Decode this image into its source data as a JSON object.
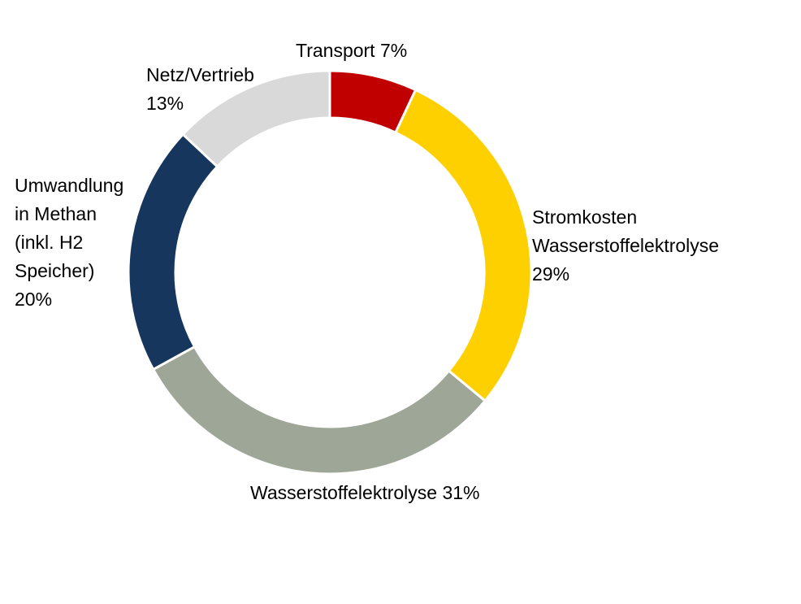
{
  "chart_data": {
    "type": "pie",
    "variant": "donut",
    "title": "",
    "start": "12 o'clock",
    "direction": "clockwise",
    "slices": [
      {
        "label": "Transport",
        "value": 7,
        "unit": "%",
        "color": "#c00000",
        "label_lines": [
          "Transport 7%"
        ]
      },
      {
        "label": "Stromkosten Wasserstoffelektrolyse",
        "value": 29,
        "unit": "%",
        "color": "#ffd000",
        "label_lines": [
          "Stromkosten",
          "Wasserstoffelektrolyse",
          "29%"
        ]
      },
      {
        "label": "Wasserstoffelektrolyse",
        "value": 31,
        "unit": "%",
        "color": "#9ea698",
        "label_lines": [
          "Wasserstoffelektrolyse 31%"
        ]
      },
      {
        "label": "Umwandlung in Methan (inkl. H2 Speicher)",
        "value": 20,
        "unit": "%",
        "color": "#17365d",
        "label_lines": [
          "Umwandlung",
          "in Methan",
          "(inkl. H2",
          "Speicher)",
          "20%"
        ]
      },
      {
        "label": "Netz/Vertrieb",
        "value": 13,
        "unit": "%",
        "color": "#d9d9d9",
        "label_lines": [
          "Netz/Vertrieb",
          "13%"
        ]
      }
    ]
  }
}
